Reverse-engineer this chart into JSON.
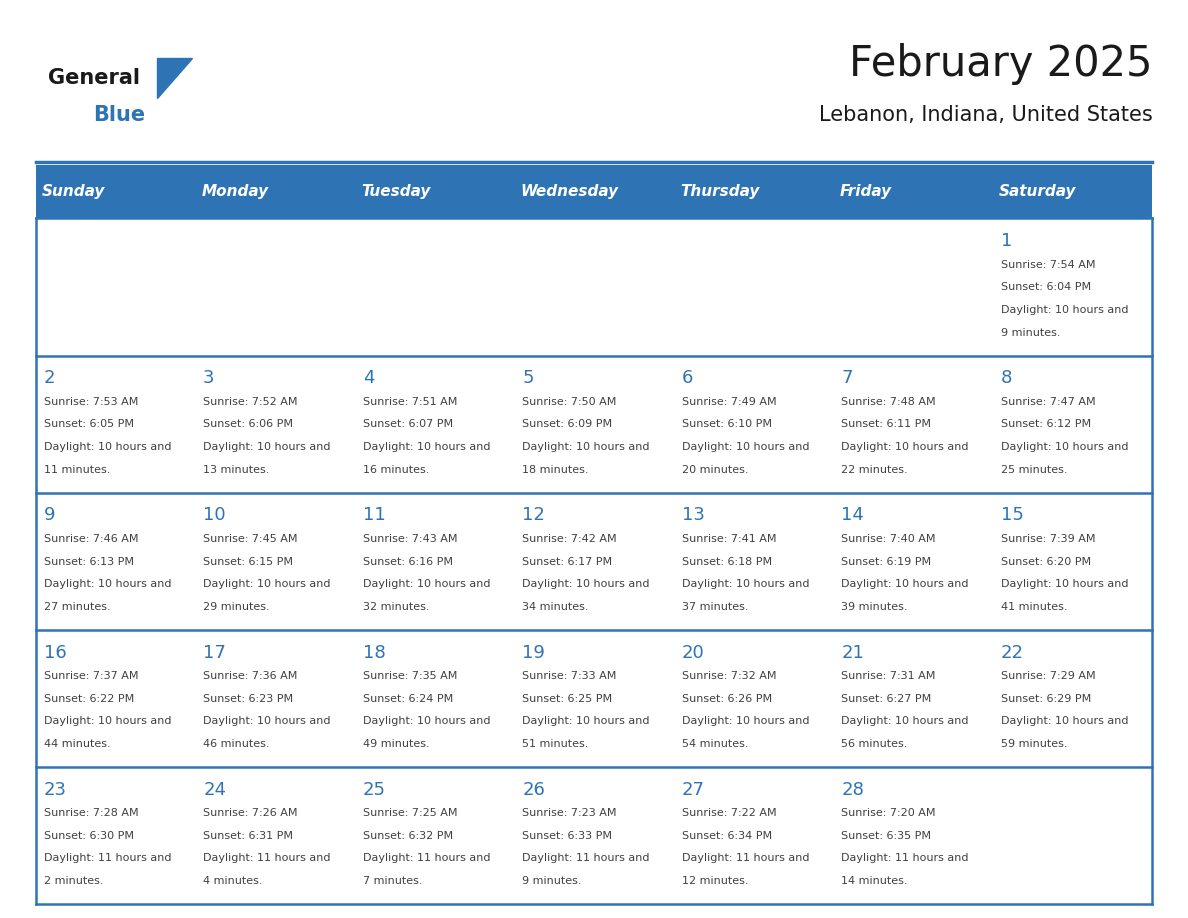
{
  "title": "February 2025",
  "subtitle": "Lebanon, Indiana, United States",
  "days_of_week": [
    "Sunday",
    "Monday",
    "Tuesday",
    "Wednesday",
    "Thursday",
    "Friday",
    "Saturday"
  ],
  "header_bg": "#2E74B5",
  "header_text": "#FFFFFF",
  "row_bg_light": "#FFFFFF",
  "cell_border": "#2E74B5",
  "day_num_color": "#2E74B5",
  "day_text_color": "#404040",
  "logo_general_color": "#1A1A1A",
  "logo_blue_color": "#2E74B5",
  "calendar_data": [
    [
      {
        "date": null,
        "sunrise": null,
        "sunset": null,
        "daylight": null
      },
      {
        "date": null,
        "sunrise": null,
        "sunset": null,
        "daylight": null
      },
      {
        "date": null,
        "sunrise": null,
        "sunset": null,
        "daylight": null
      },
      {
        "date": null,
        "sunrise": null,
        "sunset": null,
        "daylight": null
      },
      {
        "date": null,
        "sunrise": null,
        "sunset": null,
        "daylight": null
      },
      {
        "date": null,
        "sunrise": null,
        "sunset": null,
        "daylight": null
      },
      {
        "date": 1,
        "sunrise": "7:54 AM",
        "sunset": "6:04 PM",
        "daylight": "10 hours and 9 minutes"
      }
    ],
    [
      {
        "date": 2,
        "sunrise": "7:53 AM",
        "sunset": "6:05 PM",
        "daylight": "10 hours and 11 minutes"
      },
      {
        "date": 3,
        "sunrise": "7:52 AM",
        "sunset": "6:06 PM",
        "daylight": "10 hours and 13 minutes"
      },
      {
        "date": 4,
        "sunrise": "7:51 AM",
        "sunset": "6:07 PM",
        "daylight": "10 hours and 16 minutes"
      },
      {
        "date": 5,
        "sunrise": "7:50 AM",
        "sunset": "6:09 PM",
        "daylight": "10 hours and 18 minutes"
      },
      {
        "date": 6,
        "sunrise": "7:49 AM",
        "sunset": "6:10 PM",
        "daylight": "10 hours and 20 minutes"
      },
      {
        "date": 7,
        "sunrise": "7:48 AM",
        "sunset": "6:11 PM",
        "daylight": "10 hours and 22 minutes"
      },
      {
        "date": 8,
        "sunrise": "7:47 AM",
        "sunset": "6:12 PM",
        "daylight": "10 hours and 25 minutes"
      }
    ],
    [
      {
        "date": 9,
        "sunrise": "7:46 AM",
        "sunset": "6:13 PM",
        "daylight": "10 hours and 27 minutes"
      },
      {
        "date": 10,
        "sunrise": "7:45 AM",
        "sunset": "6:15 PM",
        "daylight": "10 hours and 29 minutes"
      },
      {
        "date": 11,
        "sunrise": "7:43 AM",
        "sunset": "6:16 PM",
        "daylight": "10 hours and 32 minutes"
      },
      {
        "date": 12,
        "sunrise": "7:42 AM",
        "sunset": "6:17 PM",
        "daylight": "10 hours and 34 minutes"
      },
      {
        "date": 13,
        "sunrise": "7:41 AM",
        "sunset": "6:18 PM",
        "daylight": "10 hours and 37 minutes"
      },
      {
        "date": 14,
        "sunrise": "7:40 AM",
        "sunset": "6:19 PM",
        "daylight": "10 hours and 39 minutes"
      },
      {
        "date": 15,
        "sunrise": "7:39 AM",
        "sunset": "6:20 PM",
        "daylight": "10 hours and 41 minutes"
      }
    ],
    [
      {
        "date": 16,
        "sunrise": "7:37 AM",
        "sunset": "6:22 PM",
        "daylight": "10 hours and 44 minutes"
      },
      {
        "date": 17,
        "sunrise": "7:36 AM",
        "sunset": "6:23 PM",
        "daylight": "10 hours and 46 minutes"
      },
      {
        "date": 18,
        "sunrise": "7:35 AM",
        "sunset": "6:24 PM",
        "daylight": "10 hours and 49 minutes"
      },
      {
        "date": 19,
        "sunrise": "7:33 AM",
        "sunset": "6:25 PM",
        "daylight": "10 hours and 51 minutes"
      },
      {
        "date": 20,
        "sunrise": "7:32 AM",
        "sunset": "6:26 PM",
        "daylight": "10 hours and 54 minutes"
      },
      {
        "date": 21,
        "sunrise": "7:31 AM",
        "sunset": "6:27 PM",
        "daylight": "10 hours and 56 minutes"
      },
      {
        "date": 22,
        "sunrise": "7:29 AM",
        "sunset": "6:29 PM",
        "daylight": "10 hours and 59 minutes"
      }
    ],
    [
      {
        "date": 23,
        "sunrise": "7:28 AM",
        "sunset": "6:30 PM",
        "daylight": "11 hours and 2 minutes"
      },
      {
        "date": 24,
        "sunrise": "7:26 AM",
        "sunset": "6:31 PM",
        "daylight": "11 hours and 4 minutes"
      },
      {
        "date": 25,
        "sunrise": "7:25 AM",
        "sunset": "6:32 PM",
        "daylight": "11 hours and 7 minutes"
      },
      {
        "date": 26,
        "sunrise": "7:23 AM",
        "sunset": "6:33 PM",
        "daylight": "11 hours and 9 minutes"
      },
      {
        "date": 27,
        "sunrise": "7:22 AM",
        "sunset": "6:34 PM",
        "daylight": "11 hours and 12 minutes"
      },
      {
        "date": 28,
        "sunrise": "7:20 AM",
        "sunset": "6:35 PM",
        "daylight": "11 hours and 14 minutes"
      },
      {
        "date": null,
        "sunrise": null,
        "sunset": null,
        "daylight": null
      }
    ]
  ]
}
